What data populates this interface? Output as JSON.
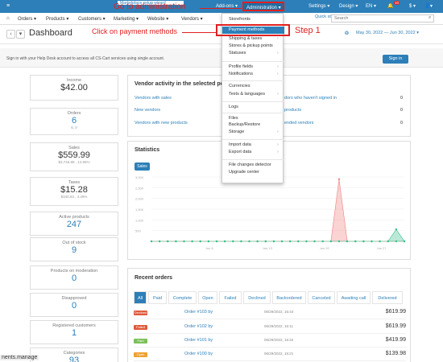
{
  "topbar": {
    "addons": "Add-ons ▾",
    "administration": "Administration ▾",
    "settings": "Settings ▾",
    "design": "Design ▾",
    "lang": "EN ▾",
    "currency": "$ ▾",
    "user": "▾",
    "notif_count": "10",
    "wizard": "Marketplace setup wizard"
  },
  "annotations": {
    "go_admin": "Go to administration",
    "payment": "Click on payment methods",
    "step": "Step 1"
  },
  "menu": {
    "home": "⌂",
    "orders": "Orders ▾",
    "products": "Products ▾",
    "customers": "Customers ▾",
    "marketing": "Marketing ▾",
    "website": "Website ▾",
    "vendors": "Vendors ▾",
    "quick_start": "Quick start menu ▾",
    "search_placeholder": "Search"
  },
  "page": {
    "title": "Dashboard",
    "date_range": "May 30, 2022 — Jun 30, 2022 ▾"
  },
  "help": {
    "text": "Sign in with your Help Desk account to access all CS-Cart services using single account.",
    "signin": "Sign in"
  },
  "sidebar": [
    {
      "label": "Income",
      "value": "$42.00",
      "sub": ""
    },
    {
      "label": "Orders",
      "value": "6",
      "sub": "6, 0"
    },
    {
      "label": "Sales",
      "value": "$559.99",
      "sub": "$3,746.89 , 14.95%"
    },
    {
      "label": "Taxes",
      "value": "$15.28",
      "sub": "$340.63 , 4.49%"
    },
    {
      "label": "Active products",
      "value": "247",
      "sub": ""
    },
    {
      "label": "Out of stock",
      "value": "9",
      "sub": ""
    },
    {
      "label": "Products on moderation",
      "value": "0",
      "sub": ""
    },
    {
      "label": "Disapproved",
      "value": "0",
      "sub": ""
    },
    {
      "label": "Registered customers",
      "value": "1",
      "sub": ""
    },
    {
      "label": "Categories",
      "value": "93",
      "sub": ""
    }
  ],
  "vendor_activity": {
    "title": "Vendor activity in the selected peri",
    "rows": [
      {
        "left": "Vendors with sales",
        "right": "dors who haven't signed in",
        "num": "0"
      },
      {
        "left": "New vendors",
        "right": "products",
        "num": "0"
      },
      {
        "left": "Vendors with new products",
        "right": "ended vendors",
        "num": "0"
      }
    ]
  },
  "statistics": {
    "title": "Statistics",
    "sales_btn": "Sales",
    "y_ticks": [
      "3,000",
      "2,500",
      "2,000",
      "1,500",
      "1,000",
      "500"
    ],
    "x_ticks": [
      "Jun 6",
      "Jun 13",
      "Jun 20",
      "Jun 27"
    ]
  },
  "chart_data": {
    "type": "area",
    "x": [
      "May 30",
      "May 31",
      "Jun 1",
      "Jun 2",
      "Jun 3",
      "Jun 4",
      "Jun 5",
      "Jun 6",
      "Jun 7",
      "Jun 8",
      "Jun 9",
      "Jun 10",
      "Jun 11",
      "Jun 12",
      "Jun 13",
      "Jun 14",
      "Jun 15",
      "Jun 16",
      "Jun 17",
      "Jun 18",
      "Jun 19",
      "Jun 20",
      "Jun 21",
      "Jun 22",
      "Jun 23",
      "Jun 24",
      "Jun 25",
      "Jun 26",
      "Jun 27",
      "Jun 28",
      "Jun 29",
      "Jun 30"
    ],
    "series": [
      {
        "name": "",
        "color": "#f08080",
        "values": [
          0,
          0,
          0,
          0,
          0,
          0,
          0,
          0,
          0,
          0,
          0,
          0,
          0,
          0,
          0,
          0,
          0,
          0,
          0,
          0,
          0,
          0,
          0,
          2900,
          0,
          0,
          0,
          0,
          0,
          0,
          0,
          0
        ]
      },
      {
        "name": "",
        "color": "#3cc08f",
        "values": [
          0,
          0,
          0,
          0,
          0,
          0,
          0,
          0,
          0,
          0,
          0,
          0,
          0,
          0,
          0,
          0,
          0,
          0,
          0,
          0,
          0,
          0,
          0,
          0,
          0,
          0,
          0,
          0,
          0,
          0,
          560,
          0
        ]
      }
    ],
    "ylim": [
      0,
      3000
    ],
    "title": "",
    "xlabel": "",
    "ylabel": ""
  },
  "recent_orders": {
    "title": "Recent orders",
    "tabs": [
      "All",
      "Paid",
      "Complete",
      "Open",
      "Failed",
      "Declined",
      "Backordered",
      "Canceled",
      "Awaiting call",
      "Delivered"
    ],
    "rows": [
      {
        "status": "Declined",
        "color": "#e05a3a",
        "order": "Order #103 by",
        "date": "06/29/2022, 16:44",
        "amount": "$619.99"
      },
      {
        "status": "Failed",
        "color": "#e05a3a",
        "order": "Order #102 by",
        "date": "06/29/2022, 16:11",
        "amount": "$619.99"
      },
      {
        "status": "Paid",
        "color": "#7cc05a",
        "order": "Order #101 by",
        "date": "06/29/2022, 15:42",
        "amount": "$419.99"
      },
      {
        "status": "Open",
        "color": "#f0a030",
        "order": "Order #100 by",
        "date": "06/29/2022, 15:21",
        "amount": "$139.98"
      }
    ]
  },
  "dropdown": {
    "items": [
      {
        "label": "Storefronts",
        "chev": ""
      },
      {
        "label": "Payment methods",
        "chev": ""
      },
      {
        "label": "Shipping & taxes",
        "chev": "›"
      },
      {
        "label": "Stores & pickup points",
        "chev": ""
      },
      {
        "label": "Statuses",
        "chev": "›"
      },
      {
        "label": "Profile fields",
        "chev": "›"
      },
      {
        "label": "Notifications",
        "chev": "›"
      },
      {
        "label": "Currencies",
        "chev": ""
      },
      {
        "label": "Texts & languages",
        "chev": "›"
      },
      {
        "label": "Logs",
        "chev": ""
      },
      {
        "label": "Files",
        "chev": ""
      },
      {
        "label": "Backup/Restore",
        "chev": ""
      },
      {
        "label": "Storage",
        "chev": "›"
      },
      {
        "label": "Import data",
        "chev": "›"
      },
      {
        "label": "Export data",
        "chev": "›"
      },
      {
        "label": "File changes detector",
        "chev": ""
      },
      {
        "label": "Upgrade center",
        "chev": ""
      }
    ]
  },
  "footer_tip": "nents.manage"
}
